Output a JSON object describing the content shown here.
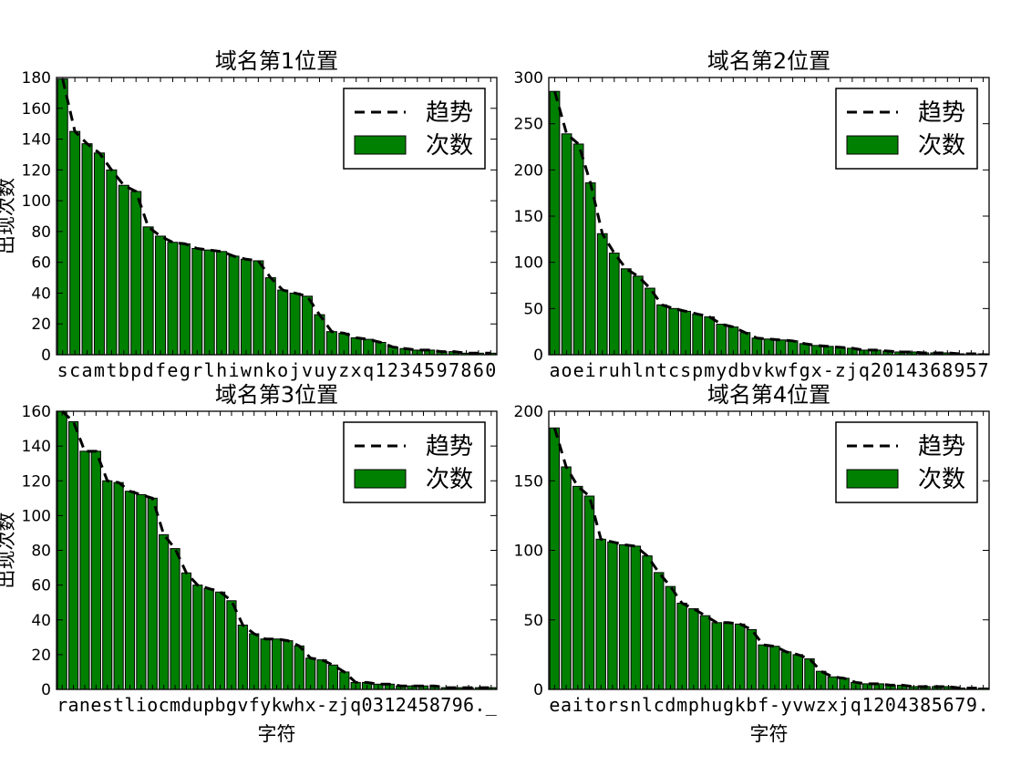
{
  "chart_data": [
    {
      "type": "bar",
      "title": "域名第1位置",
      "xlabel": "",
      "ylabel": "出现次数",
      "ylim": [
        0,
        180
      ],
      "yticks": [
        0,
        20,
        40,
        60,
        80,
        100,
        120,
        140,
        160,
        180
      ],
      "category_string": "scamtbpdfegrlhiwnkojvuyzxq1234597860",
      "values": [
        179,
        145,
        137,
        131,
        120,
        110,
        106,
        83,
        77,
        73,
        72,
        69,
        68,
        67,
        64,
        62,
        61,
        50,
        42,
        40,
        38,
        26,
        15,
        14,
        11,
        10,
        8,
        5,
        4,
        3,
        3,
        2,
        2,
        1,
        1,
        1
      ],
      "legend": {
        "trend": "趋势",
        "count": "次数",
        "position": "top-right"
      },
      "colors": {
        "bar": "#008000",
        "trend": "#000000"
      }
    },
    {
      "type": "bar",
      "title": "域名第2位置",
      "xlabel": "",
      "ylabel": "",
      "ylim": [
        0,
        300
      ],
      "yticks": [
        0,
        50,
        100,
        150,
        200,
        250,
        300
      ],
      "category_string": "aoeiruhlntcspmydbvkwfgx-zjq2014368957",
      "values": [
        285,
        239,
        228,
        186,
        131,
        110,
        93,
        85,
        72,
        54,
        50,
        47,
        44,
        41,
        33,
        30,
        24,
        18,
        17,
        16,
        15,
        12,
        10,
        9,
        8,
        7,
        5,
        5,
        4,
        3,
        3,
        2,
        2,
        2,
        1,
        1,
        1
      ],
      "legend": {
        "trend": "趋势",
        "count": "次数",
        "position": "top-right"
      },
      "colors": {
        "bar": "#008000",
        "trend": "#000000"
      }
    },
    {
      "type": "bar",
      "title": "域名第3位置",
      "xlabel": "字符",
      "ylabel": "出现次数",
      "ylim": [
        0,
        160
      ],
      "yticks": [
        0,
        20,
        40,
        60,
        80,
        100,
        120,
        140,
        160
      ],
      "category_string": "ranestliocmdupbgvfykwhx-zjq0312458796._",
      "values": [
        160,
        154,
        137,
        137,
        120,
        119,
        114,
        112,
        110,
        89,
        81,
        67,
        60,
        58,
        56,
        51,
        37,
        32,
        29,
        29,
        28,
        25,
        18,
        17,
        14,
        10,
        4,
        4,
        3,
        3,
        2,
        2,
        2,
        2,
        1,
        1,
        1,
        1,
        1
      ],
      "legend": {
        "trend": "趋势",
        "count": "次数",
        "position": "top-right"
      },
      "colors": {
        "bar": "#008000",
        "trend": "#000000"
      }
    },
    {
      "type": "bar",
      "title": "域名第4位置",
      "xlabel": "字符",
      "ylabel": "",
      "ylim": [
        0,
        200
      ],
      "yticks": [
        0,
        50,
        100,
        150,
        200
      ],
      "category_string": "eaitorsnlcdmphugkbf-yvwzxjq1204385679.",
      "values": [
        188,
        160,
        146,
        139,
        108,
        106,
        104,
        103,
        96,
        84,
        74,
        62,
        58,
        53,
        48,
        48,
        47,
        43,
        32,
        31,
        27,
        25,
        22,
        13,
        9,
        8,
        5,
        4,
        4,
        3,
        3,
        2,
        2,
        2,
        2,
        1,
        1,
        1
      ],
      "legend": {
        "trend": "趋势",
        "count": "次数",
        "position": "top-right"
      },
      "colors": {
        "bar": "#008000",
        "trend": "#000000"
      }
    }
  ]
}
